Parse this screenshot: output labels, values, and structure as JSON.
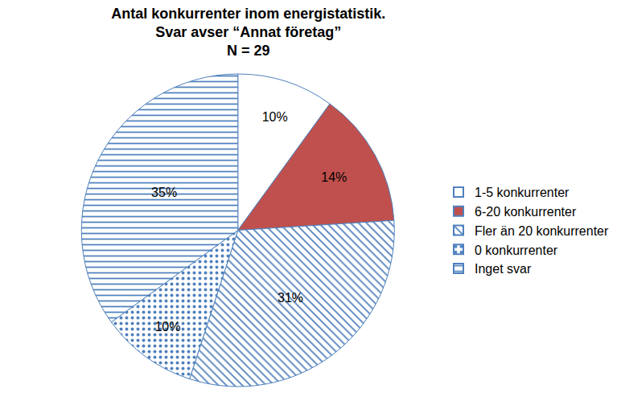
{
  "chart_data": {
    "type": "pie",
    "title": "Antal konkurrenter inom energistatistik.\nSvar avser “Annat företag”\nN = 29",
    "categories": [
      "1-5 konkurrenter",
      "6-20 konkurrenter",
      "Fler än 20 konkurrenter",
      "0 konkurrenter",
      "Inget svar"
    ],
    "values": [
      10,
      14,
      31,
      10,
      35
    ],
    "value_labels": [
      "10%",
      "14%",
      "31%",
      "10%",
      "35%"
    ],
    "colors": [
      "#ffffff",
      "#c0504d",
      "#ffffff",
      "#ffffff",
      "#ffffff"
    ],
    "data_labels": true,
    "legend": "right"
  }
}
